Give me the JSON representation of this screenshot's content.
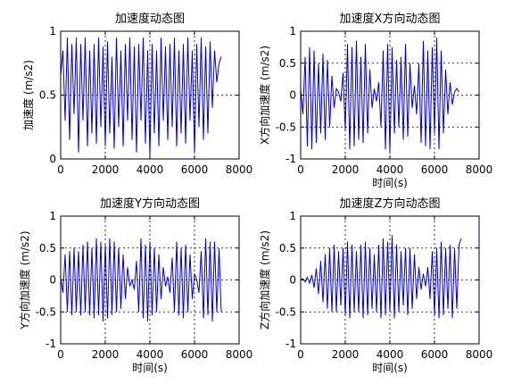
{
  "figure": {
    "background": "#ffffff",
    "line_color": "#0000cc"
  },
  "chart_data": [
    {
      "type": "line",
      "title": "加速度动态图",
      "xlabel": "",
      "ylabel": "加速度 (m/s2)",
      "xlim": [
        0,
        8000
      ],
      "ylim": [
        0,
        1
      ],
      "xticks": [
        0,
        2000,
        4000,
        6000,
        8000
      ],
      "yticks": [
        0,
        0.5,
        1
      ],
      "grid": true,
      "series": [
        {
          "x": [
            0,
            100,
            200,
            300,
            400,
            500,
            600,
            700,
            800,
            900,
            1000,
            1100,
            1200,
            1300,
            1400,
            1500,
            1600,
            1700,
            1800,
            1900,
            2000,
            2100,
            2200,
            2300,
            2400,
            2500,
            2600,
            2700,
            2800,
            2900,
            3000,
            3100,
            3200,
            3300,
            3400,
            3500,
            3600,
            3700,
            3800,
            3900,
            4000,
            4100,
            4200,
            4300,
            4400,
            4500,
            4600,
            4700,
            4800,
            4900,
            5000,
            5100,
            5200,
            5300,
            5400,
            5500,
            5600,
            5700,
            5800,
            5900,
            6000,
            6100,
            6200,
            6300,
            6400,
            6500,
            6600,
            6700,
            6800,
            6900,
            7000,
            7100,
            7200
          ],
          "values": [
            0.65,
            0.85,
            0.3,
            0.95,
            0.15,
            0.9,
            0.35,
            0.95,
            0.05,
            0.9,
            0.3,
            0.95,
            0.1,
            0.85,
            0.2,
            0.9,
            0.12,
            0.95,
            0.25,
            0.88,
            0.1,
            0.92,
            0.2,
            0.8,
            0.08,
            0.95,
            0.25,
            0.85,
            0.1,
            0.9,
            0.3,
            0.95,
            0.15,
            0.88,
            0.05,
            0.9,
            0.3,
            0.95,
            0.12,
            0.85,
            0.02,
            0.9,
            0.2,
            0.85,
            0.1,
            0.95,
            0.3,
            0.88,
            0.15,
            0.9,
            0.25,
            0.95,
            0.1,
            0.85,
            0.2,
            0.9,
            0.12,
            0.95,
            0.3,
            0.85,
            0.05,
            0.9,
            0.25,
            0.95,
            0.15,
            0.88,
            0.2,
            0.92,
            0.4,
            0.85,
            0.6,
            0.75,
            0.8
          ]
        }
      ]
    },
    {
      "type": "line",
      "title": "加速度X方向动态图",
      "xlabel": "时间(s)",
      "ylabel": "X方向加速度 (m/s2)",
      "xlim": [
        0,
        8000
      ],
      "ylim": [
        -1,
        1
      ],
      "xticks": [
        0,
        2000,
        4000,
        6000,
        8000
      ],
      "yticks": [
        -1,
        -0.5,
        0,
        0.5,
        1
      ],
      "grid": true,
      "series": [
        {
          "x": [
            0,
            100,
            200,
            300,
            400,
            500,
            600,
            700,
            800,
            900,
            1000,
            1100,
            1200,
            1300,
            1400,
            1500,
            1600,
            1700,
            1800,
            1900,
            2000,
            2100,
            2200,
            2300,
            2400,
            2500,
            2600,
            2700,
            2800,
            2900,
            3000,
            3100,
            3200,
            3300,
            3400,
            3500,
            3600,
            3700,
            3800,
            3900,
            4000,
            4100,
            4200,
            4300,
            4400,
            4500,
            4600,
            4700,
            4800,
            4900,
            5000,
            5100,
            5200,
            5300,
            5400,
            5500,
            5600,
            5700,
            5800,
            5900,
            6000,
            6100,
            6200,
            6300,
            6400,
            6500,
            6600,
            6700,
            6800,
            6900,
            7000,
            7100
          ],
          "values": [
            0.1,
            -0.3,
            0.6,
            -0.8,
            0.75,
            -0.85,
            0.7,
            -0.75,
            0.5,
            -0.6,
            0.65,
            -0.7,
            0.55,
            -0.5,
            0.3,
            -0.2,
            0.1,
            0.05,
            -0.1,
            0.35,
            -0.55,
            0.8,
            -0.85,
            0.75,
            -0.8,
            0.85,
            -0.7,
            0.6,
            -0.75,
            0.8,
            -0.6,
            0.4,
            -0.2,
            0.1,
            -0.1,
            0.2,
            -0.5,
            0.7,
            -0.85,
            0.8,
            -0.9,
            0.75,
            -0.6,
            0.55,
            -0.5,
            0.6,
            -0.7,
            0.8,
            -0.65,
            0.5,
            -0.2,
            0.15,
            -0.3,
            0.5,
            -0.75,
            0.85,
            -0.8,
            0.7,
            -0.85,
            0.75,
            -0.6,
            0.9,
            -0.85,
            0.7,
            -0.6,
            0.4,
            -0.3,
            0.2,
            -0.15,
            0.05,
            0.1,
            0.05
          ]
        }
      ]
    },
    {
      "type": "line",
      "title": "加速度Y方向动态图",
      "xlabel": "时间(s)",
      "ylabel": "Y方向加速度 (m/s2)",
      "xlim": [
        0,
        8000
      ],
      "ylim": [
        -1,
        1
      ],
      "xticks": [
        0,
        2000,
        4000,
        6000,
        8000
      ],
      "yticks": [
        -1,
        -0.5,
        0,
        0.5,
        1
      ],
      "grid": true,
      "series": [
        {
          "x": [
            0,
            100,
            200,
            300,
            400,
            500,
            600,
            700,
            800,
            900,
            1000,
            1100,
            1200,
            1300,
            1400,
            1500,
            1600,
            1700,
            1800,
            1900,
            2000,
            2100,
            2200,
            2300,
            2400,
            2500,
            2600,
            2700,
            2800,
            2900,
            3000,
            3100,
            3200,
            3300,
            3400,
            3500,
            3600,
            3700,
            3800,
            3900,
            4000,
            4100,
            4200,
            4300,
            4400,
            4500,
            4600,
            4700,
            4800,
            4900,
            5000,
            5100,
            5200,
            5300,
            5400,
            5500,
            5600,
            5700,
            5800,
            5900,
            6000,
            6100,
            6200,
            6300,
            6400,
            6500,
            6600,
            6700,
            6800,
            6900,
            7000,
            7100,
            7200
          ],
          "values": [
            0.05,
            -0.2,
            0.4,
            -0.5,
            0.45,
            -0.55,
            0.5,
            -0.5,
            0.45,
            -0.55,
            0.55,
            -0.5,
            0.6,
            -0.55,
            0.5,
            -0.6,
            0.65,
            -0.55,
            0.6,
            -0.65,
            0.55,
            -0.6,
            0.65,
            -0.55,
            0.6,
            -0.5,
            0.5,
            -0.45,
            0.4,
            -0.3,
            0.2,
            -0.1,
            0.0,
            -0.15,
            0.3,
            -0.5,
            0.65,
            -0.6,
            0.55,
            -0.65,
            0.6,
            -0.55,
            0.5,
            -0.5,
            0.4,
            -0.3,
            0.2,
            -0.1,
            0.05,
            -0.2,
            0.35,
            -0.5,
            0.6,
            -0.55,
            0.5,
            -0.6,
            0.55,
            -0.5,
            0.4,
            -0.3,
            0.1,
            0.0,
            -0.2,
            0.45,
            -0.6,
            0.65,
            -0.55,
            0.6,
            -0.65,
            0.6,
            -0.5,
            0.5,
            -0.5
          ]
        }
      ]
    },
    {
      "type": "line",
      "title": "加速度Z方向动态图",
      "xlabel": "时间(s)",
      "ylabel": "Z方向加速度 (m/s2)",
      "xlim": [
        0,
        8000
      ],
      "ylim": [
        -1,
        1
      ],
      "xticks": [
        0,
        2000,
        4000,
        6000,
        8000
      ],
      "yticks": [
        -1,
        -0.5,
        0,
        0.5,
        1
      ],
      "grid": true,
      "series": [
        {
          "x": [
            0,
            100,
            200,
            300,
            400,
            500,
            600,
            700,
            800,
            900,
            1000,
            1100,
            1200,
            1300,
            1400,
            1500,
            1600,
            1700,
            1800,
            1900,
            2000,
            2100,
            2200,
            2300,
            2400,
            2500,
            2600,
            2700,
            2800,
            2900,
            3000,
            3100,
            3200,
            3300,
            3400,
            3500,
            3600,
            3700,
            3800,
            3900,
            4000,
            4100,
            4200,
            4300,
            4400,
            4500,
            4600,
            4700,
            4800,
            4900,
            5000,
            5100,
            5200,
            5300,
            5400,
            5500,
            5600,
            5700,
            5800,
            5900,
            6000,
            6100,
            6200,
            6300,
            6400,
            6500,
            6600,
            6700,
            6800,
            6900,
            7000,
            7100,
            7200
          ],
          "values": [
            0.0,
            0.02,
            -0.03,
            0.04,
            -0.05,
            0.08,
            -0.12,
            0.18,
            -0.22,
            0.3,
            -0.35,
            0.4,
            -0.45,
            0.5,
            -0.5,
            0.55,
            -0.5,
            0.45,
            -0.4,
            0.5,
            -0.55,
            0.6,
            -0.6,
            0.55,
            -0.5,
            0.45,
            -0.5,
            0.55,
            -0.6,
            0.6,
            -0.55,
            0.5,
            -0.45,
            0.4,
            -0.5,
            0.55,
            -0.6,
            0.65,
            -0.55,
            0.6,
            -0.5,
            0.7,
            -0.6,
            0.55,
            -0.5,
            0.45,
            -0.4,
            0.5,
            -0.55,
            0.5,
            -0.45,
            0.4,
            -0.3,
            0.2,
            -0.15,
            0.1,
            -0.1,
            0.2,
            -0.3,
            0.45,
            -0.55,
            0.5,
            -0.6,
            0.6,
            -0.55,
            0.5,
            -0.45,
            0.55,
            -0.6,
            0.5,
            -0.45,
            0.55,
            0.65
          ]
        }
      ]
    }
  ]
}
